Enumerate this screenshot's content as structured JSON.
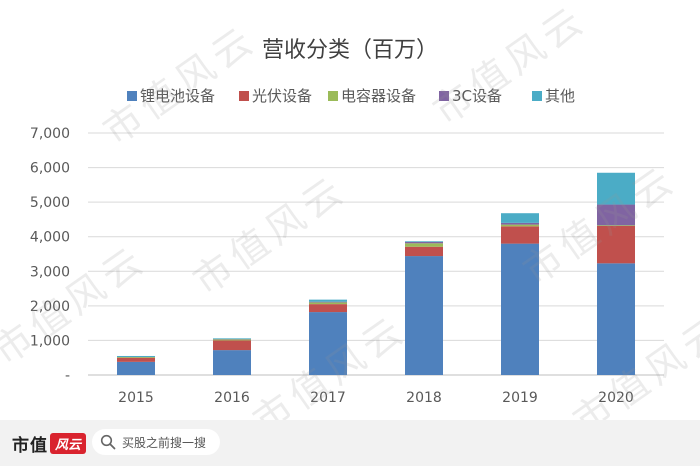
{
  "chart_data": {
    "type": "bar",
    "stacked": true,
    "title": "营收分类（百万）",
    "categories": [
      "2015",
      "2016",
      "2017",
      "2018",
      "2019",
      "2020"
    ],
    "series": [
      {
        "name": "锂电池设备",
        "color": "#4f81bd",
        "values": [
          380,
          720,
          1820,
          3440,
          3800,
          3230
        ]
      },
      {
        "name": "光伏设备",
        "color": "#c0504d",
        "values": [
          120,
          280,
          230,
          270,
          500,
          1080
        ]
      },
      {
        "name": "电容器设备",
        "color": "#9bbb59",
        "values": [
          20,
          30,
          50,
          100,
          50,
          20
        ]
      },
      {
        "name": "3C设备",
        "color": "#8064a2",
        "values": [
          0,
          10,
          20,
          40,
          50,
          600
        ]
      },
      {
        "name": "其他",
        "color": "#4bacc6",
        "values": [
          30,
          20,
          60,
          20,
          280,
          920
        ]
      }
    ],
    "ylim": [
      0,
      7000
    ],
    "yticks": [
      0,
      1000,
      2000,
      3000,
      4000,
      5000,
      6000,
      7000
    ],
    "ytick_labels": [
      "-",
      "1,000",
      "2,000",
      "3,000",
      "4,000",
      "5,000",
      "6,000",
      "7,000"
    ],
    "grid": true,
    "legend_position": "top"
  },
  "watermark": "市值风云",
  "footer": {
    "brand_text": "市值",
    "brand_mark": "风云",
    "search_placeholder": "买股之前搜一搜",
    "search_icon": "search-icon"
  }
}
